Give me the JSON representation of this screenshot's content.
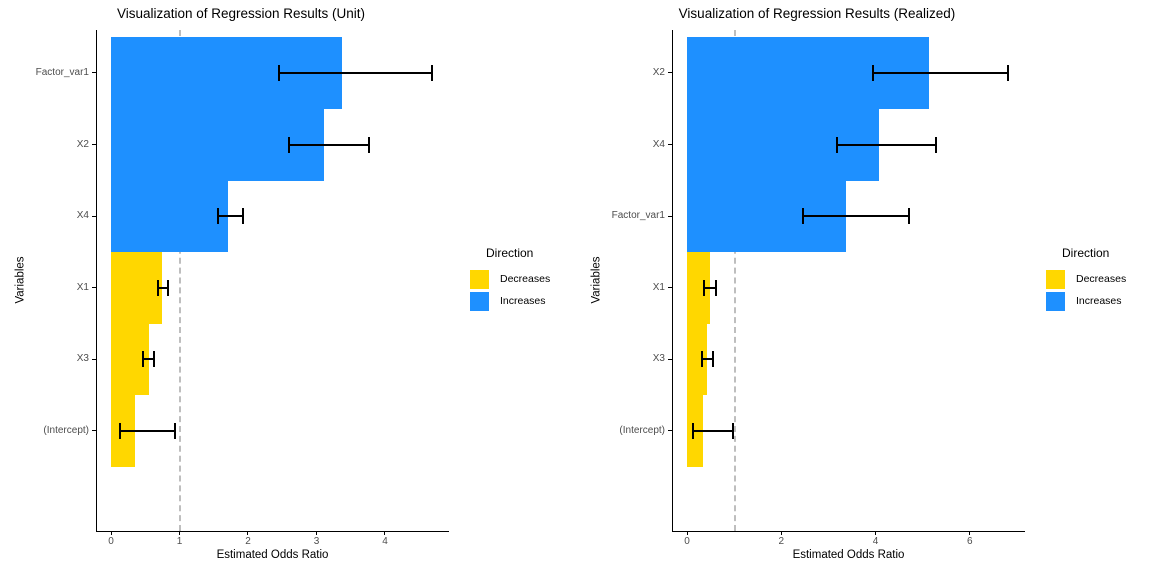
{
  "colors": {
    "increase": "#1E90FF",
    "decrease": "#FFD700",
    "reference_line": "#BEBEBE",
    "axis_line": "#000000",
    "tick_text": "#4D4D4D",
    "text": "#000000",
    "background": "#FFFFFF"
  },
  "chart_data": [
    {
      "type": "bar",
      "orientation": "horizontal",
      "title": "Visualization of Regression Results (Unit)",
      "xlabel": "Estimated Odds Ratio",
      "ylabel": "Variables",
      "xlim": [
        0,
        4.92
      ],
      "xticks": [
        0,
        1,
        2,
        3,
        4
      ],
      "ref_line_x": 1,
      "grid": false,
      "legend": {
        "title": "Direction",
        "position": "right",
        "items": [
          {
            "label": "Decreases",
            "color": "#FFD700"
          },
          {
            "label": "Increases",
            "color": "#1E90FF"
          }
        ]
      },
      "bars": [
        {
          "label": "Factor_var1",
          "value": 3.37,
          "ci_low": 2.45,
          "ci_high": 4.69,
          "direction": "Increases"
        },
        {
          "label": "X2",
          "value": 3.11,
          "ci_low": 2.6,
          "ci_high": 3.77,
          "direction": "Increases"
        },
        {
          "label": "X4",
          "value": 1.71,
          "ci_low": 1.56,
          "ci_high": 1.93,
          "direction": "Increases"
        },
        {
          "label": "X1",
          "value": 0.74,
          "ci_low": 0.69,
          "ci_high": 0.83,
          "direction": "Decreases"
        },
        {
          "label": "X3",
          "value": 0.55,
          "ci_low": 0.47,
          "ci_high": 0.63,
          "direction": "Decreases"
        },
        {
          "label": "(Intercept)",
          "value": 0.35,
          "ci_low": 0.13,
          "ci_high": 0.93,
          "direction": "Decreases"
        }
      ]
    },
    {
      "type": "bar",
      "orientation": "horizontal",
      "title": "Visualization of Regression Results (Realized)",
      "xlabel": "Estimated Odds Ratio",
      "ylabel": "Variables",
      "xlim": [
        0,
        7.15
      ],
      "xticks": [
        0,
        2,
        4,
        6
      ],
      "ref_line_x": 1,
      "grid": false,
      "legend": {
        "title": "Direction",
        "position": "right",
        "items": [
          {
            "label": "Decreases",
            "color": "#FFD700"
          },
          {
            "label": "Increases",
            "color": "#1E90FF"
          }
        ]
      },
      "bars": [
        {
          "label": "X2",
          "value": 5.13,
          "ci_low": 3.94,
          "ci_high": 6.81,
          "direction": "Increases"
        },
        {
          "label": "X4",
          "value": 4.07,
          "ci_low": 3.18,
          "ci_high": 5.28,
          "direction": "Increases"
        },
        {
          "label": "Factor_var1",
          "value": 3.37,
          "ci_low": 2.46,
          "ci_high": 4.71,
          "direction": "Increases"
        },
        {
          "label": "X1",
          "value": 0.49,
          "ci_low": 0.36,
          "ci_high": 0.61,
          "direction": "Decreases"
        },
        {
          "label": "X3",
          "value": 0.42,
          "ci_low": 0.32,
          "ci_high": 0.55,
          "direction": "Decreases"
        },
        {
          "label": "(Intercept)",
          "value": 0.34,
          "ci_low": 0.13,
          "ci_high": 0.98,
          "direction": "Decreases"
        }
      ]
    }
  ]
}
